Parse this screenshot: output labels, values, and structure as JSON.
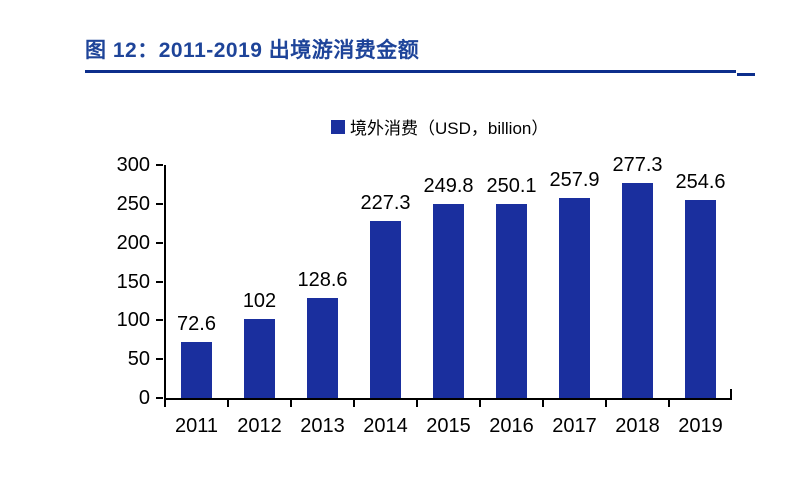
{
  "figure": {
    "title": "图 12：2011-2019 出境游消费金额"
  },
  "legend": {
    "label": "境外消费（USD，billion）"
  },
  "colors": {
    "title": "#1E4499",
    "rule": "#0D2F8C",
    "bar": "#1A2F9E",
    "axis": "#000000",
    "background": "#FFFFFF"
  },
  "chart_data": {
    "type": "bar",
    "title": "图 12：2011-2019 出境游消费金额",
    "categories": [
      "2011",
      "2012",
      "2013",
      "2014",
      "2015",
      "2016",
      "2017",
      "2018",
      "2019"
    ],
    "series": [
      {
        "name": "境外消费（USD，billion）",
        "values": [
          72.6,
          102,
          128.6,
          227.3,
          249.8,
          250.1,
          257.9,
          277.3,
          254.6
        ]
      }
    ],
    "data_labels": [
      "72.6",
      "102",
      "128.6",
      "227.3",
      "249.8",
      "250.1",
      "257.9",
      "277.3",
      "254.6"
    ],
    "xlabel": "",
    "ylabel": "",
    "ylim": [
      0,
      300
    ],
    "yticks": [
      0,
      50,
      100,
      150,
      200,
      250,
      300
    ],
    "grid": false,
    "legend_position": "top-center"
  }
}
